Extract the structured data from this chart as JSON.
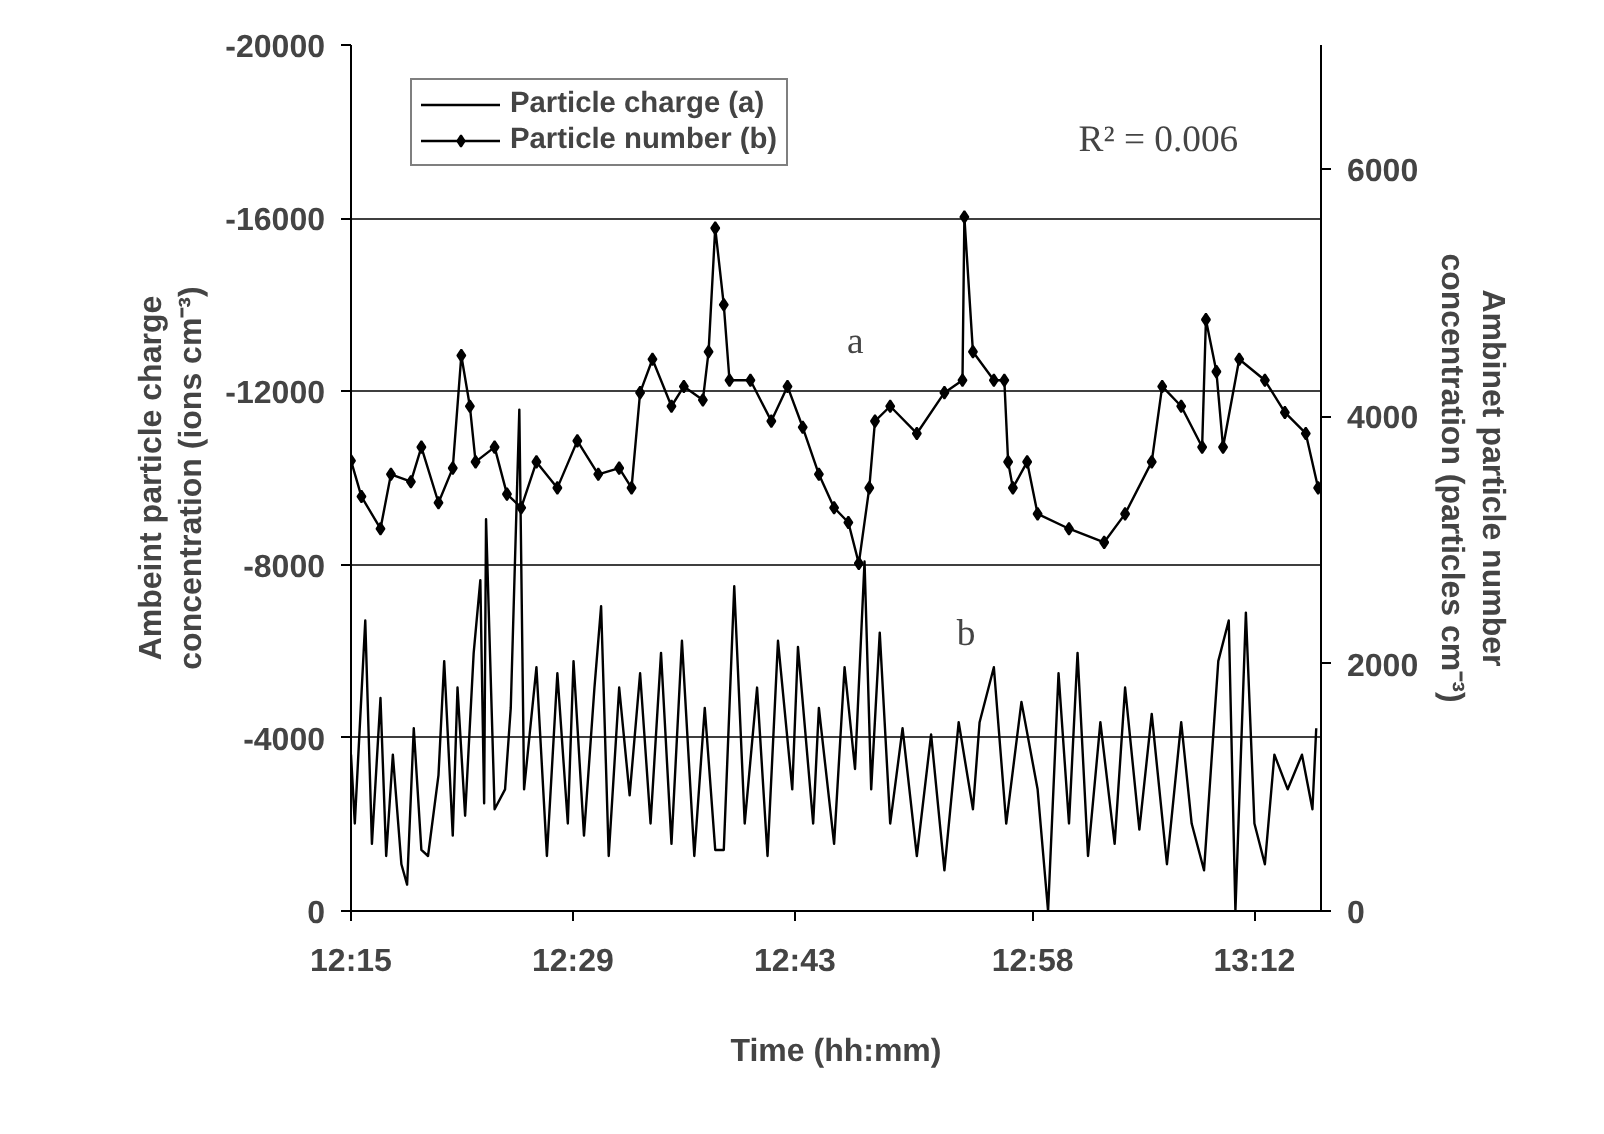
{
  "chart_data": {
    "type": "line",
    "xlabel": "Time (hh:mm)",
    "ylabel": "Ambeint particle charge\nconcentration (ions cm⁻³)",
    "y2label": "Ambinet particle number\nconcentration (particles cm⁻³)",
    "xlim": [
      12.25,
      13.27
    ],
    "xticks": [
      {
        "value": 12.25,
        "label": "12:15"
      },
      {
        "value": 12.4833,
        "label": "12:29"
      },
      {
        "value": 12.7167,
        "label": "12:43"
      },
      {
        "value": 12.9667,
        "label": "12:58"
      },
      {
        "value": 13.2,
        "label": "13:12"
      }
    ],
    "ylim": [
      0,
      -20000
    ],
    "yticks": [
      -20000,
      -16000,
      -12000,
      -8000,
      -4000,
      0
    ],
    "y2lim": [
      0,
      7000
    ],
    "y2ticks": [
      0,
      2000,
      4000,
      6000
    ],
    "grid": "y",
    "legend": "top left",
    "annotations": [
      "R² = 0.006",
      "a",
      "b"
    ],
    "series": [
      {
        "name": "Particle charge (a)",
        "color": "#000000",
        "marker": "none",
        "x": [
          12.25,
          12.254,
          12.265,
          12.272,
          12.281,
          12.287,
          12.294,
          12.303,
          12.309,
          12.316,
          12.324,
          12.331,
          12.342,
          12.348,
          12.357,
          12.362,
          12.37,
          12.379,
          12.386,
          12.39,
          12.392,
          12.401,
          12.412,
          12.418,
          12.427,
          12.432,
          12.445,
          12.456,
          12.467,
          12.478,
          12.484,
          12.495,
          12.506,
          12.513,
          12.521,
          12.532,
          12.543,
          12.554,
          12.565,
          12.576,
          12.587,
          12.598,
          12.611,
          12.622,
          12.633,
          12.642,
          12.653,
          12.664,
          12.677,
          12.688,
          12.699,
          12.714,
          12.72,
          12.736,
          12.742,
          12.758,
          12.769,
          12.78,
          12.79,
          12.797,
          12.806,
          12.817,
          12.83,
          12.845,
          12.86,
          12.874,
          12.889,
          12.904,
          12.911,
          12.926,
          12.939,
          12.955,
          12.972,
          12.983,
          12.994,
          13.005,
          13.014,
          13.025,
          13.038,
          13.053,
          13.064,
          13.079,
          13.092,
          13.108,
          13.123,
          13.134,
          13.147,
          13.162,
          13.173,
          13.18,
          13.191,
          13.2,
          13.211,
          13.221,
          13.235,
          13.25,
          13.261,
          13.265
        ],
        "values": [
          -3610,
          -2020,
          -6710,
          -1550,
          -4920,
          -1270,
          -3610,
          -1080,
          -610,
          -4220,
          -1410,
          -1270,
          -3140,
          -5770,
          -1740,
          -5160,
          -2200,
          -5960,
          -7640,
          -2490,
          -9050,
          -2350,
          -2810,
          -4690,
          -11580,
          -2810,
          -5630,
          -1270,
          -5490,
          -2020,
          -5770,
          -1740,
          -5160,
          -7040,
          -1270,
          -5160,
          -2670,
          -5490,
          -2020,
          -5960,
          -1550,
          -6240,
          -1270,
          -4690,
          -1410,
          -1410,
          -7500,
          -2020,
          -5160,
          -1270,
          -6240,
          -2810,
          -6100,
          -2020,
          -4690,
          -1550,
          -5630,
          -3280,
          -8070,
          -2810,
          -6430,
          -2020,
          -4220,
          -1270,
          -4080,
          -940,
          -4360,
          -2350,
          -4360,
          -5630,
          -2020,
          -4830,
          -2810,
          0,
          -5490,
          -2020,
          -5960,
          -1270,
          -4360,
          -1550,
          -5160,
          -1880,
          -4550,
          -1080,
          -4360,
          -2020,
          -940,
          -5770,
          -6710,
          0,
          -6890,
          -2020,
          -1080,
          -3610,
          -2810,
          -3610,
          -2350,
          -4220
        ]
      },
      {
        "name": "Particle number (b)",
        "color": "#000000",
        "marker": "diamond",
        "axis": "y2",
        "x": [
          12.25,
          12.261,
          12.281,
          12.292,
          12.313,
          12.324,
          12.342,
          12.357,
          12.366,
          12.375,
          12.381,
          12.401,
          12.414,
          12.429,
          12.445,
          12.467,
          12.488,
          12.51,
          12.532,
          12.545,
          12.554,
          12.567,
          12.587,
          12.6,
          12.62,
          12.626,
          12.633,
          12.642,
          12.648,
          12.67,
          12.692,
          12.709,
          12.725,
          12.742,
          12.758,
          12.773,
          12.784,
          12.795,
          12.801,
          12.817,
          12.845,
          12.874,
          12.893,
          12.895,
          12.904,
          12.926,
          12.937,
          12.941,
          12.946,
          12.961,
          12.972,
          13.005,
          13.042,
          13.064,
          13.092,
          13.103,
          13.123,
          13.145,
          13.149,
          13.16,
          13.167,
          13.184,
          13.211,
          13.232,
          13.254,
          13.267
        ],
        "values": [
          3640,
          3350,
          3090,
          3530,
          3470,
          3750,
          3300,
          3580,
          4490,
          4080,
          3630,
          3750,
          3370,
          3260,
          3630,
          3420,
          3800,
          3530,
          3580,
          3420,
          4190,
          4460,
          4080,
          4240,
          4130,
          4520,
          5520,
          4900,
          4290,
          4290,
          3960,
          4240,
          3910,
          3530,
          3260,
          3140,
          2810,
          3420,
          3960,
          4080,
          3860,
          4190,
          4290,
          5610,
          4520,
          4290,
          4290,
          3630,
          3420,
          3630,
          3210,
          3090,
          2980,
          3210,
          3630,
          4240,
          4080,
          3750,
          4780,
          4360,
          3750,
          4460,
          4290,
          4030,
          3860,
          3420
        ]
      }
    ]
  }
}
